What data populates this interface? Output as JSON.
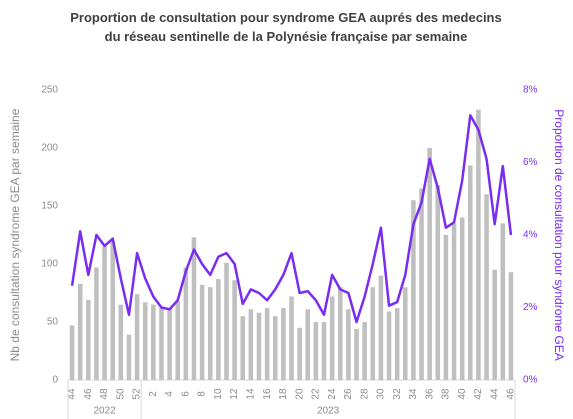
{
  "chart_data": {
    "type": "bar-line",
    "title": "Proportion de consultation pour syndrome GEA auprés des medecins du réseau sentinelle de la Polynésie française par semaine",
    "y_label": "Nb de consultation syndrome GEA par semaine",
    "y2_label": "Proportion de consultation pour syndrome GEA",
    "categories": [
      "44",
      null,
      "46",
      null,
      "48",
      null,
      "50",
      null,
      "52",
      null,
      "2",
      null,
      "4",
      null,
      "6",
      null,
      "8",
      null,
      "10",
      null,
      "12",
      null,
      "14",
      null,
      "16",
      null,
      "18",
      null,
      "20",
      null,
      "22",
      null,
      "24",
      null,
      "26",
      null,
      "28",
      null,
      "30",
      null,
      "32",
      null,
      "34",
      null,
      "36",
      null,
      "38",
      null,
      "40",
      null,
      "42",
      null,
      "44",
      null,
      "46"
    ],
    "groups": [
      {
        "label": "2022",
        "count": 9
      },
      {
        "label": "2023",
        "count": 46
      }
    ],
    "series": [
      {
        "type": "bar",
        "color": "#bfbfbf",
        "values": [
          47,
          83,
          69,
          97,
          115,
          120,
          65,
          39,
          74,
          67,
          65,
          62,
          62,
          68,
          97,
          123,
          82,
          80,
          87,
          101,
          86,
          55,
          61,
          58,
          62,
          55,
          62,
          72,
          45,
          61,
          50,
          50,
          72,
          80,
          61,
          44,
          50,
          80,
          90,
          59,
          62,
          80,
          155,
          165,
          200,
          168,
          125,
          135,
          140,
          185,
          233,
          160,
          95,
          135,
          93
        ]
      },
      {
        "type": "line",
        "axis": "y2",
        "color": "#7a2cf0",
        "values": [
          2.6,
          4.1,
          2.9,
          4.0,
          3.7,
          3.9,
          2.8,
          1.8,
          3.5,
          2.8,
          2.3,
          2.0,
          1.95,
          2.2,
          3.0,
          3.6,
          3.2,
          2.9,
          3.4,
          3.5,
          3.2,
          2.1,
          2.5,
          2.4,
          2.2,
          2.5,
          2.9,
          3.5,
          2.4,
          2.45,
          2.2,
          1.8,
          2.9,
          2.5,
          2.4,
          1.6,
          2.3,
          3.2,
          4.2,
          2.05,
          2.15,
          2.9,
          4.3,
          4.9,
          6.1,
          5.3,
          4.2,
          4.35,
          5.5,
          7.3,
          6.9,
          6.1,
          4.3,
          5.9,
          4.0
        ]
      }
    ],
    "ylim": [
      0,
      250
    ],
    "yticks": [
      0,
      50,
      100,
      150,
      200,
      250
    ],
    "y2lim": [
      0,
      8
    ],
    "y2ticks": [
      {
        "value": 0,
        "label": "0%"
      },
      {
        "value": 2,
        "label": "2%"
      },
      {
        "value": 4,
        "label": "4%"
      },
      {
        "value": 6,
        "label": "6%"
      },
      {
        "value": 8,
        "label": "8%"
      }
    ],
    "y2_color": "#7a2cf0"
  }
}
